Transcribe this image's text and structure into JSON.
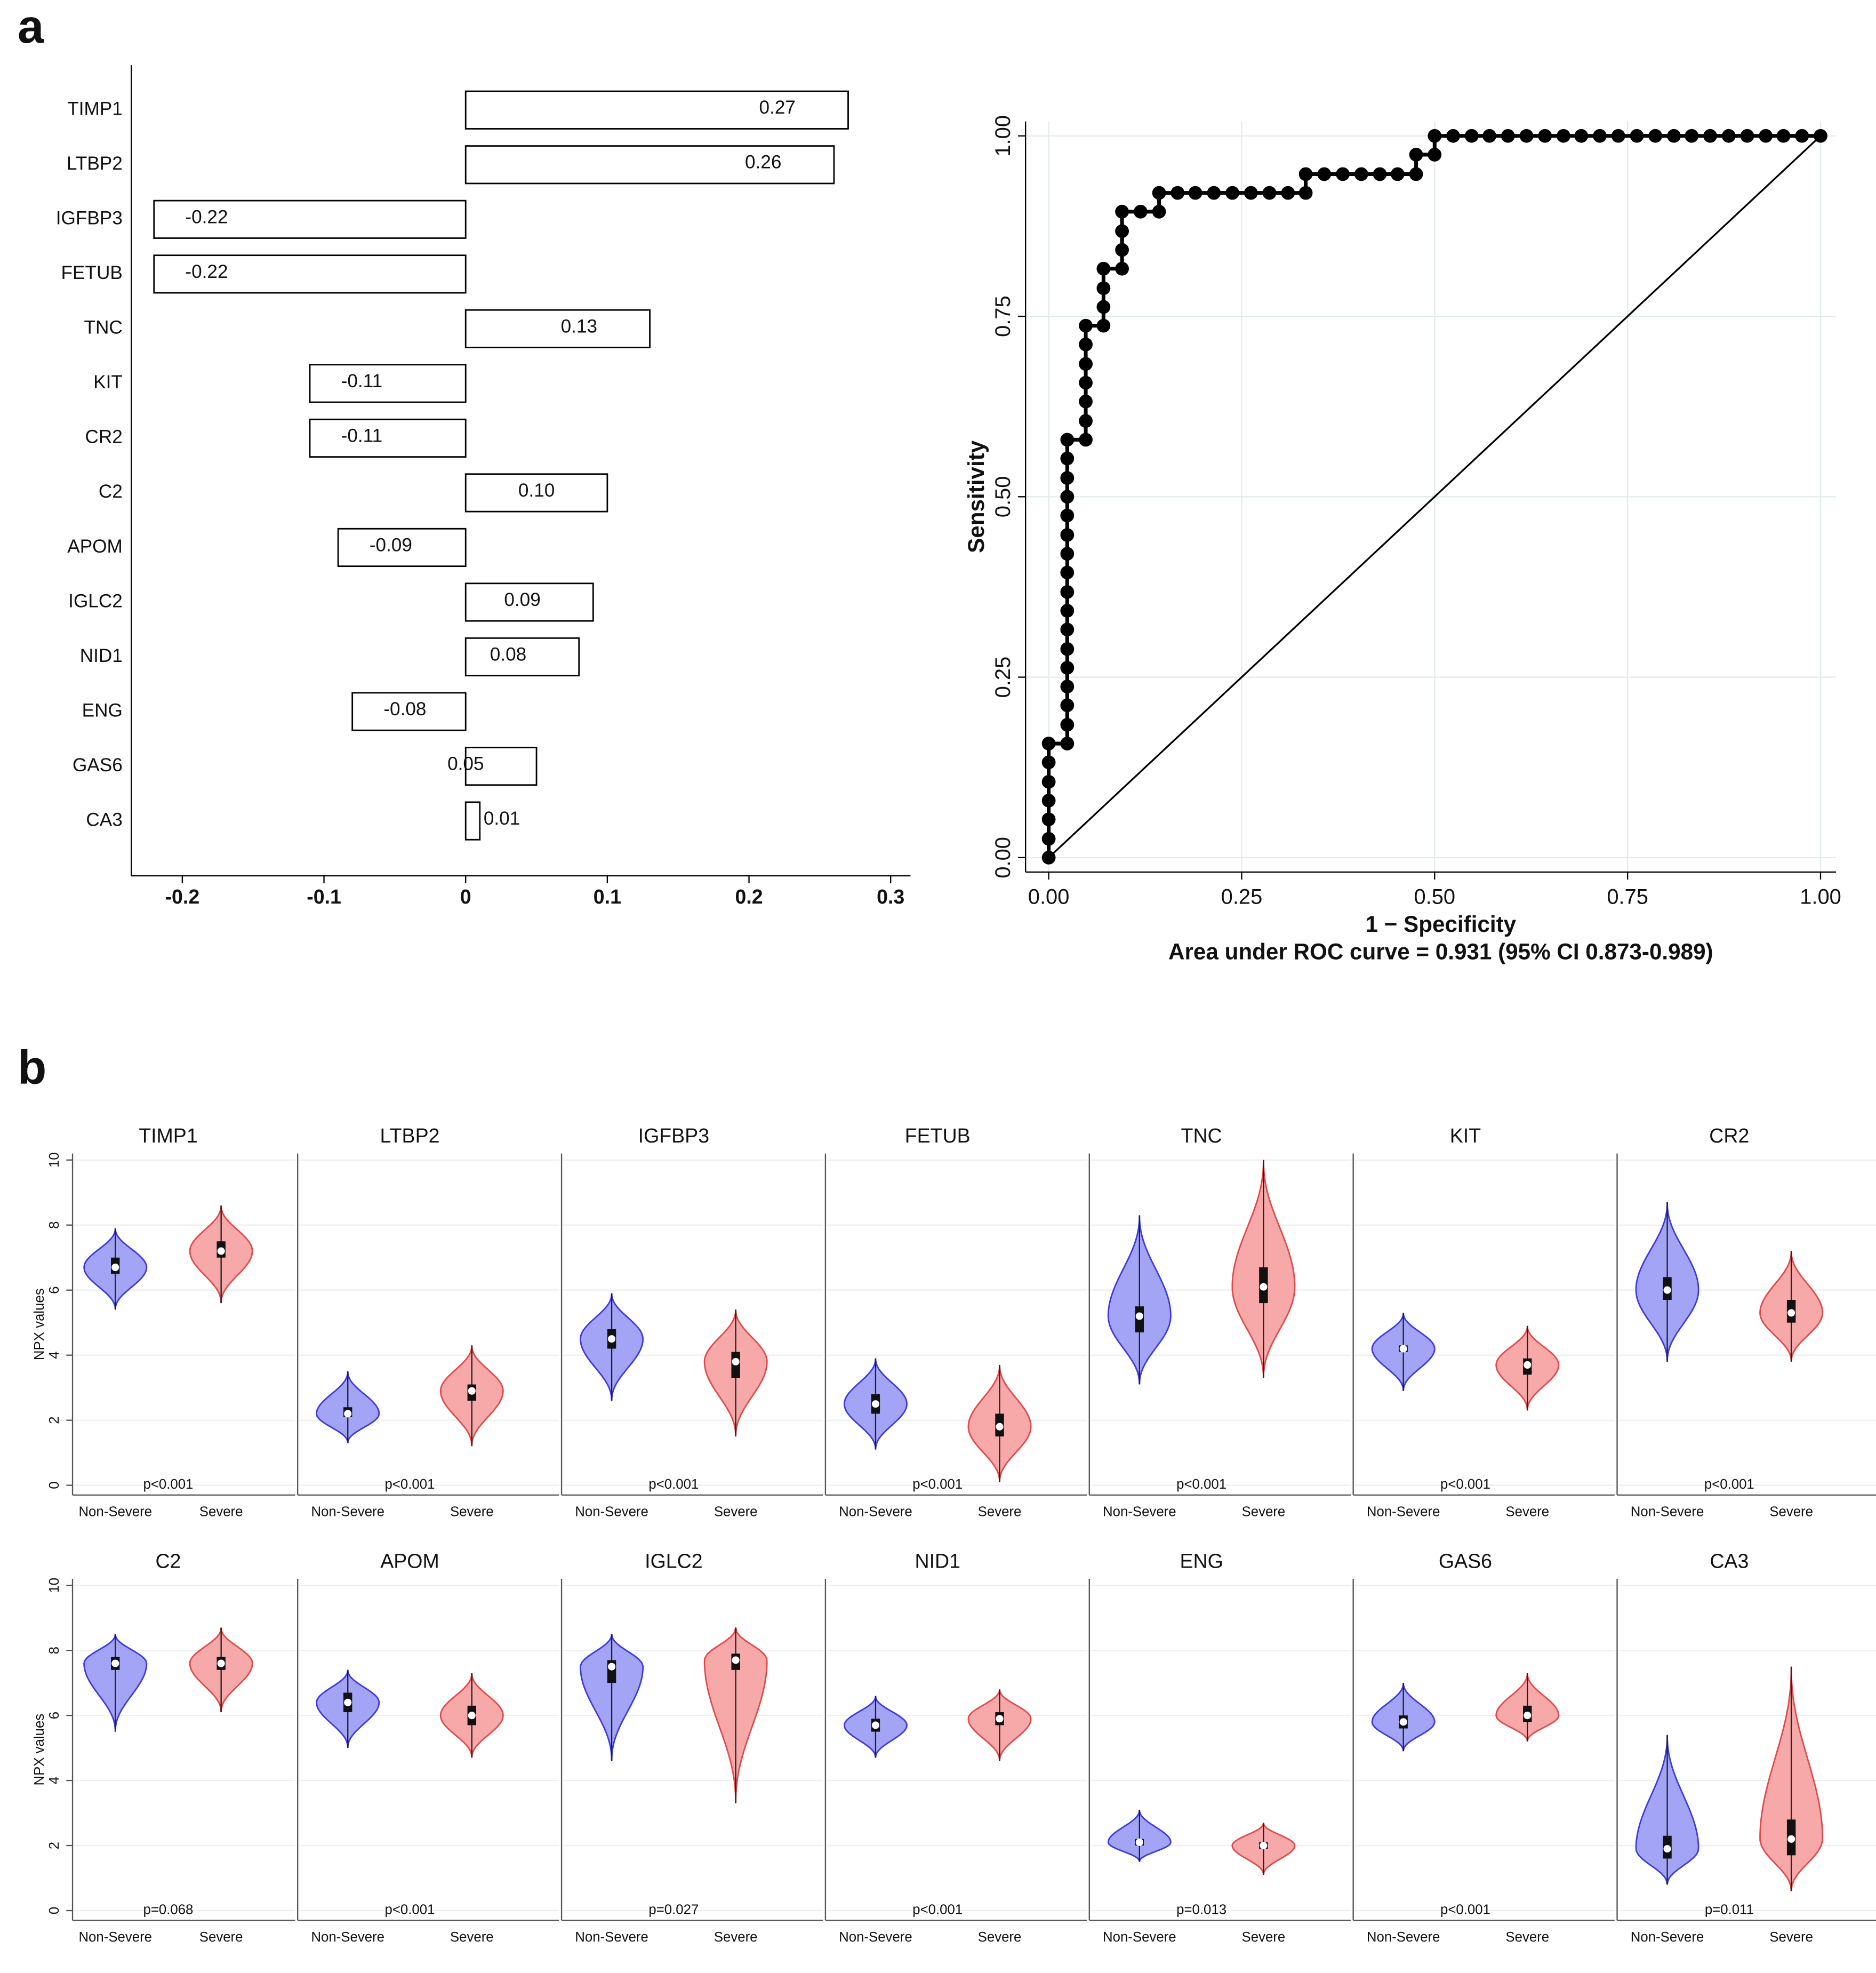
{
  "panel_labels": [
    "a",
    "b"
  ],
  "chart_data": [
    {
      "type": "bar",
      "orientation": "horizontal",
      "categories": [
        "TIMP1",
        "LTBP2",
        "IGFBP3",
        "FETUB",
        "TNC",
        "KIT",
        "CR2",
        "C2",
        "APOM",
        "IGLC2",
        "NID1",
        "ENG",
        "GAS6",
        "CA3"
      ],
      "values": [
        0.27,
        0.26,
        -0.22,
        -0.22,
        0.13,
        -0.11,
        -0.11,
        0.1,
        -0.09,
        0.09,
        0.08,
        -0.08,
        0.05,
        0.01
      ],
      "value_labels": [
        "0.27",
        "0.26",
        "-0.22",
        "-0.22",
        "0.13",
        "-0.11",
        "-0.11",
        "0.10",
        "-0.09",
        "0.09",
        "0.08",
        "-0.08",
        "0.05",
        "0.01"
      ],
      "color": "#ffffff",
      "edge_color": "#000000",
      "xlim": [
        -0.236,
        0.314
      ],
      "xticks": [
        -0.2,
        -0.1,
        0,
        0.1,
        0.2,
        0.3
      ]
    },
    {
      "type": "line",
      "markers": true,
      "xlabel": "1 − Specificity",
      "ylabel": "Sensitivity",
      "note": "Area under ROC curve = 0.931 (95% CI 0.873-0.989)",
      "xlim": [
        -0.03,
        1.02
      ],
      "ylim": [
        -0.02,
        1.02
      ],
      "grid": true,
      "xticks": [
        {
          "value": 0,
          "label": "0.00"
        },
        {
          "value": 0.25,
          "label": "0.25"
        },
        {
          "value": 0.5,
          "label": "0.50"
        },
        {
          "value": 0.75,
          "label": "0.75"
        },
        {
          "value": 1,
          "label": "1.00"
        }
      ],
      "yticks": [
        {
          "value": 0,
          "label": "0.00"
        },
        {
          "value": 0.25,
          "label": "0.25"
        },
        {
          "value": 0.5,
          "label": "0.50"
        },
        {
          "value": 0.75,
          "label": "0.75"
        },
        {
          "value": 1,
          "label": "1.00"
        }
      ],
      "x": [
        0,
        0,
        0,
        0,
        0,
        0,
        0,
        0.024,
        0.024,
        0.024,
        0.024,
        0.024,
        0.024,
        0.024,
        0.024,
        0.024,
        0.024,
        0.024,
        0.024,
        0.024,
        0.024,
        0.024,
        0.024,
        0.024,
        0.048,
        0.048,
        0.048,
        0.048,
        0.048,
        0.048,
        0.048,
        0.071,
        0.071,
        0.071,
        0.071,
        0.095,
        0.095,
        0.095,
        0.095,
        0.119,
        0.143,
        0.143,
        0.167,
        0.19,
        0.214,
        0.238,
        0.262,
        0.286,
        0.31,
        0.333,
        0.333,
        0.357,
        0.381,
        0.405,
        0.429,
        0.452,
        0.476,
        0.476,
        0.5,
        0.5,
        0.524,
        0.548,
        0.571,
        0.595,
        0.619,
        0.643,
        0.667,
        0.69,
        0.714,
        0.738,
        0.762,
        0.786,
        0.81,
        0.833,
        0.857,
        0.881,
        0.905,
        0.929,
        0.952,
        0.976,
        1.0
      ],
      "series": [
        {
          "color": "#000000",
          "values": [
            0,
            0.026,
            0.053,
            0.079,
            0.105,
            0.132,
            0.158,
            0.158,
            0.184,
            0.211,
            0.237,
            0.263,
            0.289,
            0.316,
            0.342,
            0.368,
            0.395,
            0.421,
            0.447,
            0.474,
            0.5,
            0.526,
            0.553,
            0.579,
            0.579,
            0.605,
            0.632,
            0.658,
            0.684,
            0.711,
            0.737,
            0.737,
            0.763,
            0.789,
            0.816,
            0.816,
            0.842,
            0.868,
            0.895,
            0.895,
            0.895,
            0.921,
            0.921,
            0.921,
            0.921,
            0.921,
            0.921,
            0.921,
            0.921,
            0.921,
            0.947,
            0.947,
            0.947,
            0.947,
            0.947,
            0.947,
            0.947,
            0.974,
            0.974,
            1.0,
            1.0,
            1.0,
            1.0,
            1.0,
            1.0,
            1.0,
            1.0,
            1.0,
            1.0,
            1.0,
            1.0,
            1.0,
            1.0,
            1.0,
            1.0,
            1.0,
            1.0,
            1.0,
            1.0,
            1.0,
            1.0
          ]
        }
      ],
      "diagonal": {
        "x": [
          0,
          1
        ],
        "y": [
          0,
          1
        ]
      }
    },
    {
      "type": "violin",
      "ylabel": "NPX values",
      "ylim": [
        -0.3,
        10.2
      ],
      "yticks": [
        0,
        2,
        4,
        6,
        8,
        10
      ],
      "grid": true,
      "fill_colors": [
        "#a4a4f7",
        "#f7a9a9"
      ],
      "edge_colors": [
        "#3b3be0",
        "#e24a4a"
      ],
      "panels": [
        {
          "title": "TIMP1",
          "p_label": "p<0.001",
          "series": [
            {
              "name": "Non-Severe",
              "values": [
                5.4,
                6.5,
                6.7,
                7.0,
                7.9
              ]
            },
            {
              "name": "Severe",
              "values": [
                5.6,
                7.0,
                7.2,
                7.5,
                8.6
              ]
            }
          ]
        },
        {
          "title": "LTBP2",
          "p_label": "p<0.001",
          "series": [
            {
              "name": "Non-Severe",
              "values": [
                1.3,
                2.1,
                2.2,
                2.4,
                3.5
              ]
            },
            {
              "name": "Severe",
              "values": [
                1.2,
                2.6,
                2.9,
                3.1,
                4.3
              ]
            }
          ]
        },
        {
          "title": "IGFBP3",
          "p_label": "p<0.001",
          "series": [
            {
              "name": "Non-Severe",
              "values": [
                2.6,
                4.2,
                4.5,
                4.8,
                5.9
              ]
            },
            {
              "name": "Severe",
              "values": [
                1.5,
                3.3,
                3.8,
                4.1,
                5.4
              ]
            }
          ]
        },
        {
          "title": "FETUB",
          "p_label": "p<0.001",
          "series": [
            {
              "name": "Non-Severe",
              "values": [
                1.1,
                2.2,
                2.5,
                2.8,
                3.9
              ]
            },
            {
              "name": "Severe",
              "values": [
                0.1,
                1.5,
                1.8,
                2.2,
                3.7
              ]
            }
          ]
        },
        {
          "title": "TNC",
          "p_label": "p<0.001",
          "series": [
            {
              "name": "Non-Severe",
              "values": [
                3.1,
                4.7,
                5.2,
                5.5,
                8.3
              ]
            },
            {
              "name": "Severe",
              "values": [
                3.3,
                5.6,
                6.1,
                6.7,
                10.0
              ]
            }
          ]
        },
        {
          "title": "KIT",
          "p_label": "p<0.001",
          "series": [
            {
              "name": "Non-Severe",
              "values": [
                2.9,
                4.1,
                4.2,
                4.3,
                5.3
              ]
            },
            {
              "name": "Severe",
              "values": [
                2.3,
                3.4,
                3.7,
                3.9,
                4.9
              ]
            }
          ]
        },
        {
          "title": "CR2",
          "p_label": "p<0.001",
          "series": [
            {
              "name": "Non-Severe",
              "values": [
                3.8,
                5.7,
                6.0,
                6.4,
                8.7
              ]
            },
            {
              "name": "Severe",
              "values": [
                3.8,
                5.0,
                5.3,
                5.7,
                7.2
              ]
            }
          ]
        },
        {
          "title": "C2",
          "p_label": "p=0.068",
          "series": [
            {
              "name": "Non-Severe",
              "values": [
                5.5,
                7.4,
                7.6,
                7.8,
                8.5
              ]
            },
            {
              "name": "Severe",
              "values": [
                6.1,
                7.4,
                7.6,
                7.8,
                8.7
              ]
            }
          ]
        },
        {
          "title": "APOM",
          "p_label": "p<0.001",
          "series": [
            {
              "name": "Non-Severe",
              "values": [
                5.0,
                6.1,
                6.4,
                6.7,
                7.4
              ]
            },
            {
              "name": "Severe",
              "values": [
                4.7,
                5.7,
                6.0,
                6.3,
                7.3
              ]
            }
          ]
        },
        {
          "title": "IGLC2",
          "p_label": "p=0.027",
          "series": [
            {
              "name": "Non-Severe",
              "values": [
                4.6,
                7.0,
                7.5,
                7.7,
                8.5
              ]
            },
            {
              "name": "Severe",
              "values": [
                3.3,
                7.4,
                7.7,
                7.9,
                8.7
              ]
            }
          ]
        },
        {
          "title": "NID1",
          "p_label": "p<0.001",
          "series": [
            {
              "name": "Non-Severe",
              "values": [
                4.7,
                5.5,
                5.7,
                5.9,
                6.6
              ]
            },
            {
              "name": "Severe",
              "values": [
                4.6,
                5.7,
                5.9,
                6.1,
                6.8
              ]
            }
          ]
        },
        {
          "title": "ENG",
          "p_label": "p=0.013",
          "series": [
            {
              "name": "Non-Severe",
              "values": [
                1.5,
                2.0,
                2.1,
                2.2,
                3.1
              ]
            },
            {
              "name": "Severe",
              "values": [
                1.1,
                1.9,
                2.0,
                2.1,
                2.7
              ]
            }
          ]
        },
        {
          "title": "GAS6",
          "p_label": "p<0.001",
          "series": [
            {
              "name": "Non-Severe",
              "values": [
                4.9,
                5.6,
                5.8,
                6.0,
                7.0
              ]
            },
            {
              "name": "Severe",
              "values": [
                5.2,
                5.8,
                6.0,
                6.3,
                7.3
              ]
            }
          ]
        },
        {
          "title": "CA3",
          "p_label": "p=0.011",
          "series": [
            {
              "name": "Non-Severe",
              "values": [
                0.8,
                1.6,
                1.9,
                2.3,
                5.4
              ]
            },
            {
              "name": "Severe",
              "values": [
                0.6,
                1.7,
                2.2,
                2.8,
                7.5
              ]
            }
          ]
        }
      ]
    }
  ]
}
